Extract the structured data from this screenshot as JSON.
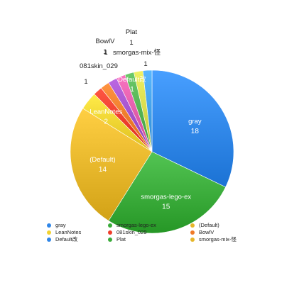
{
  "chart_data": {
    "type": "pie",
    "title": "",
    "slices": [
      {
        "label": "gray",
        "value": 18,
        "color": "#2f86e8"
      },
      {
        "label": "smorgas-lego-ex",
        "value": 15,
        "color": "#3aab3a"
      },
      {
        "label": "(Default)",
        "value": 14,
        "color": "#e6b62a"
      },
      {
        "label": "LeanNotes",
        "value": 2,
        "color": "#f2d230"
      },
      {
        "label": "081skin_029",
        "value": 1,
        "color": "#ef3d2a"
      },
      {
        "label": "BowlV",
        "value": 1,
        "color": "#f07a28"
      },
      {
        "label": "Plat",
        "value": 1,
        "color": "#a24fc9"
      },
      {
        "label": "smorgas-mix-怪",
        "value": 1,
        "color": "#e05aa8"
      },
      {
        "label": "Default改",
        "value": 1,
        "color": "#52b050"
      },
      {
        "label": "",
        "value": 1,
        "color": "#d6d84a"
      },
      {
        "label": "",
        "value": 1,
        "color": "#3f9ee8"
      }
    ],
    "legend": [
      {
        "label": "gray",
        "color": "#2f86e8"
      },
      {
        "label": "smorgas-lego-ex",
        "color": "#3aab3a"
      },
      {
        "label": "(Default)",
        "color": "#e6b62a"
      },
      {
        "label": "LeanNotes",
        "color": "#f2d230"
      },
      {
        "label": "081skin_029",
        "color": "#ef3d2a"
      },
      {
        "label": "BowlV",
        "color": "#f07a28"
      },
      {
        "label": "Default改",
        "color": "#2f86e8"
      },
      {
        "label": "Plat",
        "color": "#3aab3a"
      },
      {
        "label": "smorgas-mix-怪",
        "color": "#e6b62a"
      }
    ],
    "legend_position": "bottom"
  }
}
